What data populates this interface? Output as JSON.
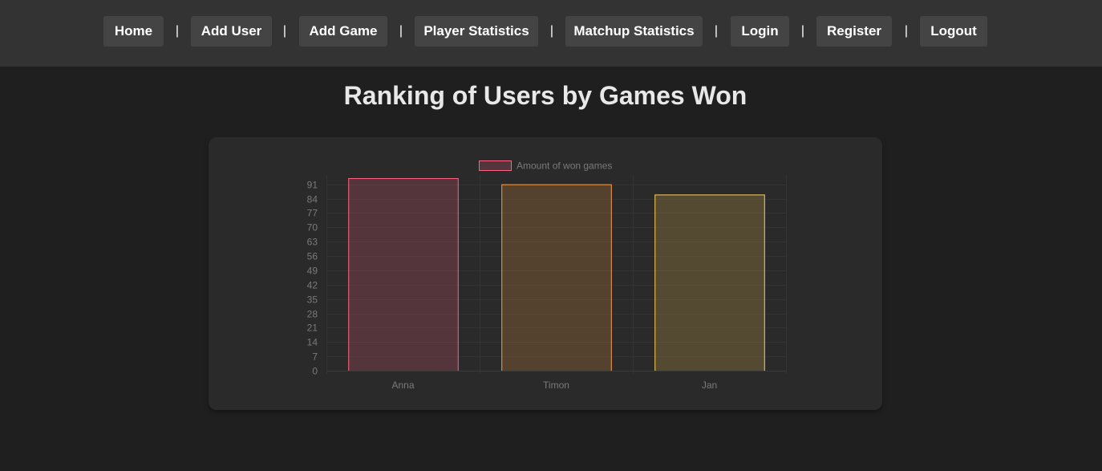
{
  "nav": {
    "items": [
      "Home",
      "Add User",
      "Add Game",
      "Player Statistics",
      "Matchup Statistics",
      "Login",
      "Register",
      "Logout"
    ],
    "separator": "|"
  },
  "page": {
    "title": "Ranking of Users by Games Won"
  },
  "colors": {
    "navbar_bg": "#333333",
    "nav_button_bg": "#444444",
    "page_bg": "#1f1f1f",
    "card_bg": "#2a2a2a"
  },
  "chart_data": {
    "type": "bar",
    "categories": [
      "Anna",
      "Timon",
      "Jan"
    ],
    "series": [
      {
        "name": "Amount of won games",
        "values": [
          94,
          91,
          86
        ],
        "bar_fills": [
          "rgba(255,99,132,0.2)",
          "rgba(255,159,64,0.2)",
          "rgba(255,205,86,0.2)"
        ],
        "bar_borders": [
          "#ff6384",
          "#ff9f40",
          "#ffcd56"
        ]
      }
    ],
    "yticks": [
      0,
      7,
      14,
      21,
      28,
      35,
      42,
      49,
      56,
      63,
      70,
      77,
      84,
      91
    ],
    "ylim": [
      0,
      94
    ],
    "grid": true,
    "legend_position": "top"
  }
}
